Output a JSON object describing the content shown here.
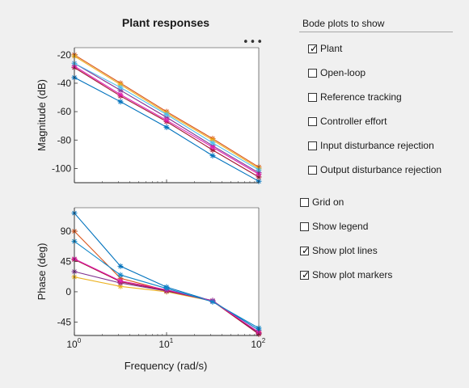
{
  "figure": {
    "title": "Plant responses",
    "more_icon": "more-options-icon",
    "xlabel": "Frequency (rad/s)"
  },
  "panel": {
    "title": "Bode plots to show",
    "options": [
      {
        "label": "Plant",
        "checked": true
      },
      {
        "label": "Open-loop",
        "checked": false
      },
      {
        "label": "Reference tracking",
        "checked": false
      },
      {
        "label": "Controller effort",
        "checked": false
      },
      {
        "label": "Input disturbance rejection",
        "checked": false
      },
      {
        "label": "Output disturbance rejection",
        "checked": false
      }
    ],
    "toggles": [
      {
        "label": "Grid on",
        "checked": false
      },
      {
        "label": "Show legend",
        "checked": false
      },
      {
        "label": "Show plot lines",
        "checked": true
      },
      {
        "label": "Show plot markers",
        "checked": true
      }
    ]
  },
  "chart_data": [
    {
      "type": "line",
      "xscale": "log",
      "x": [
        1,
        3.16,
        10,
        31.6,
        100
      ],
      "xticks": [
        "10^0",
        "10^1",
        "10^2"
      ],
      "xlim": [
        1,
        100
      ],
      "ylabel": "Magnitude (dB)",
      "ylim": [
        -110,
        -15
      ],
      "yticks": [
        -20,
        -40,
        -60,
        -80,
        -100
      ],
      "series": [
        {
          "color": "#0072BD",
          "values": [
            -36,
            -53,
            -71,
            -91,
            -109
          ]
        },
        {
          "color": "#D95319",
          "values": [
            -20,
            -40,
            -60,
            -79,
            -99
          ]
        },
        {
          "color": "#EDB120",
          "values": [
            -21,
            -41,
            -61,
            -80,
            -100
          ]
        },
        {
          "color": "#7E2F8E",
          "values": [
            -26,
            -45,
            -64,
            -84,
            -103
          ]
        },
        {
          "color": "#A2142F",
          "values": [
            -29,
            -49,
            -67,
            -87,
            -106
          ]
        },
        {
          "color": "#E020B0",
          "values": [
            -28,
            -48,
            -66,
            -85,
            -104
          ]
        },
        {
          "color": "#4DBEEE",
          "values": [
            -26,
            -43,
            -62,
            -82,
            -101
          ]
        }
      ]
    },
    {
      "type": "line",
      "xscale": "log",
      "x": [
        1,
        3.16,
        10,
        31.6,
        100
      ],
      "xticks": [
        "10^0",
        "10^1",
        "10^2"
      ],
      "xlim": [
        1,
        100
      ],
      "ylabel": "Phase (deg)",
      "ylim": [
        -65,
        125
      ],
      "yticks": [
        90,
        45,
        0,
        -45
      ],
      "series": [
        {
          "color": "#0072BD",
          "values": [
            117,
            38,
            7,
            -14,
            -57
          ]
        },
        {
          "color": "#D95319",
          "values": [
            90,
            20,
            2,
            -14,
            -61
          ]
        },
        {
          "color": "#EDB120",
          "values": [
            22,
            8,
            0,
            -14,
            -62
          ]
        },
        {
          "color": "#7E2F8E",
          "values": [
            30,
            13,
            1,
            -13,
            -62
          ]
        },
        {
          "color": "#A2142F",
          "values": [
            48,
            15,
            2,
            -14,
            -63
          ]
        },
        {
          "color": "#E020B0",
          "values": [
            49,
            16,
            3,
            -14,
            -60
          ]
        },
        {
          "color": "#0E86C8",
          "values": [
            75,
            25,
            5,
            -15,
            -54
          ]
        }
      ]
    }
  ]
}
